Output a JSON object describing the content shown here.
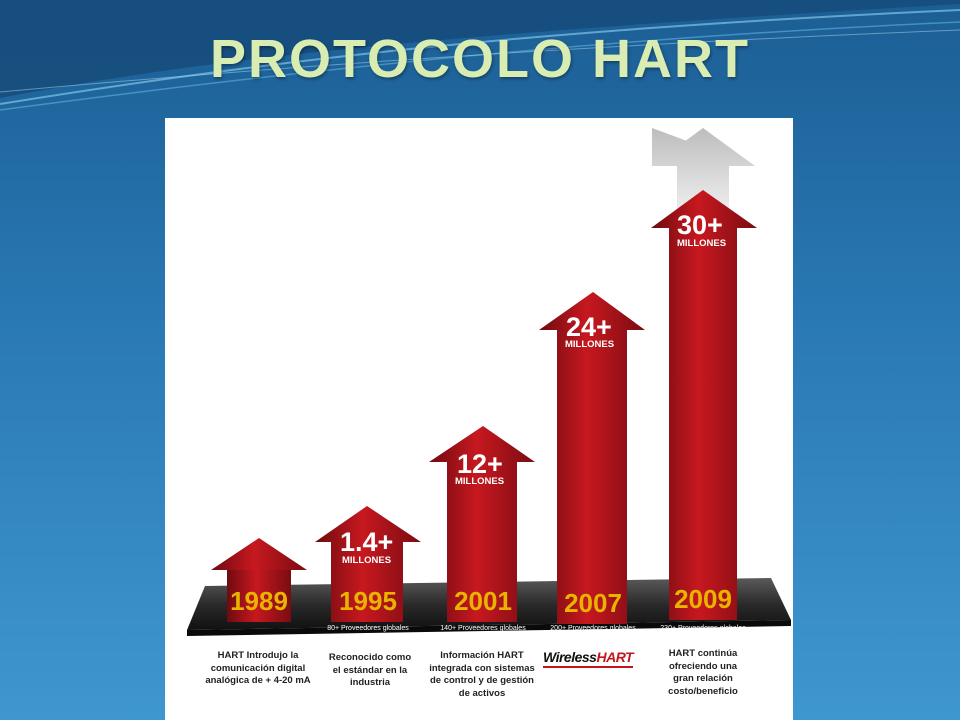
{
  "title": "PROTOCOLO HART",
  "colors": {
    "accent_red": "#c4161c",
    "title": "#d9ecb2"
  },
  "timeline": [
    {
      "year": "1989",
      "big": "",
      "unit": "",
      "providers": ""
    },
    {
      "year": "1995",
      "big": "1.4+",
      "unit": "MILLONES",
      "providers": "80+ Proveedores globales"
    },
    {
      "year": "2001",
      "big": "12+",
      "unit": "MILLONES",
      "providers": "140+ Proveedores globales"
    },
    {
      "year": "2007",
      "big": "24+",
      "unit": "MILLONES",
      "providers": "200+ Proveedores globales"
    },
    {
      "year": "2009",
      "big": "30+",
      "unit": "MILLONES",
      "providers": "230+ Proveedores globales"
    }
  ],
  "descriptions": [
    [
      "HART Introdujo la",
      "comunicación digital",
      "analógica de + 4-20 mA"
    ],
    [
      "Reconocido como",
      "el estándar en la",
      "industria"
    ],
    [
      "Información HART",
      "integrada con sistemas",
      "de control y de gestión",
      "de activos"
    ],
    [
      "HART continúa",
      "ofreciendo una",
      "gran relación",
      "costo/beneficio"
    ]
  ],
  "logo": {
    "part1": "Wireless",
    "part2": "HART"
  }
}
